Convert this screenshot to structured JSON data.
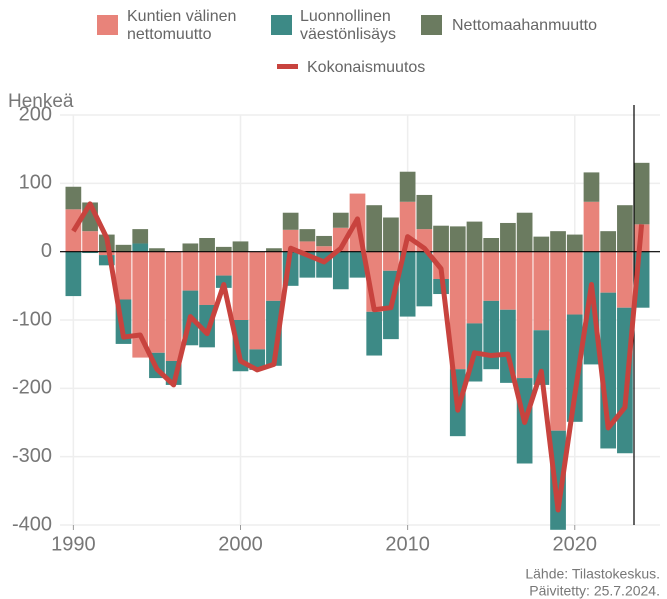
{
  "chart_data": {
    "type": "stacked_bar_line",
    "y_label": "Henkeä",
    "source": "Lähde: Tilastokeskus.",
    "updated": "Päivitetty: 25.7.2024.",
    "x": [
      1990,
      1991,
      1992,
      1993,
      1994,
      1995,
      1996,
      1997,
      1998,
      1999,
      2000,
      2001,
      2002,
      2003,
      2004,
      2005,
      2006,
      2007,
      2008,
      2009,
      2010,
      2011,
      2012,
      2013,
      2014,
      2015,
      2016,
      2017,
      2018,
      2019,
      2020,
      2021,
      2022,
      2023,
      2024
    ],
    "series": [
      {
        "name": "Kuntien välinen nettomuutto",
        "color": "#e8837a",
        "kind": "bar",
        "values": [
          62,
          30,
          -5,
          -70,
          -155,
          -148,
          -160,
          -57,
          -78,
          -35,
          -100,
          -143,
          -72,
          32,
          15,
          8,
          35,
          85,
          -88,
          -28,
          73,
          33,
          -40,
          -172,
          -105,
          -72,
          -85,
          -185,
          -115,
          -262,
          -92,
          73,
          -60,
          -82,
          40
        ]
      },
      {
        "name": "Luonnollinen väestönlisäys",
        "color": "#3d8a86",
        "kind": "bar",
        "values": [
          -65,
          -2,
          -15,
          -65,
          12,
          -37,
          -35,
          -80,
          -62,
          -18,
          -75,
          -30,
          -95,
          -50,
          -38,
          -38,
          -55,
          -38,
          -64,
          -100,
          -95,
          -80,
          -22,
          -98,
          -85,
          -100,
          -107,
          -125,
          -80,
          -145,
          -157,
          -165,
          -228,
          -213,
          -82
        ]
      },
      {
        "name": "Nettomaahanmuutto",
        "color": "#6b7b60",
        "kind": "bar",
        "values": [
          33,
          42,
          25,
          10,
          21,
          5,
          0,
          12,
          20,
          7,
          15,
          0,
          5,
          25,
          18,
          15,
          22,
          0,
          68,
          50,
          44,
          50,
          38,
          37,
          44,
          20,
          42,
          57,
          22,
          30,
          25,
          43,
          30,
          68,
          90
        ]
      },
      {
        "name": "Kokonaismuutos",
        "color": "#c8433e",
        "kind": "line",
        "values": [
          30,
          70,
          20,
          -125,
          -122,
          -172,
          -195,
          -95,
          -120,
          -48,
          -160,
          -173,
          -165,
          5,
          -5,
          -15,
          5,
          48,
          -85,
          -82,
          22,
          5,
          -25,
          -232,
          -148,
          -152,
          -150,
          -250,
          -175,
          -378,
          -210,
          -48,
          -258,
          -228,
          40
        ]
      }
    ],
    "xlim": [
      1989.2,
      2025.1
    ],
    "xticks": [
      1990,
      2000,
      2010,
      2020
    ],
    "ylim": [
      -400,
      200
    ],
    "yticks": [
      -400,
      -300,
      -200,
      -100,
      0,
      100,
      200
    ],
    "grid": true
  }
}
